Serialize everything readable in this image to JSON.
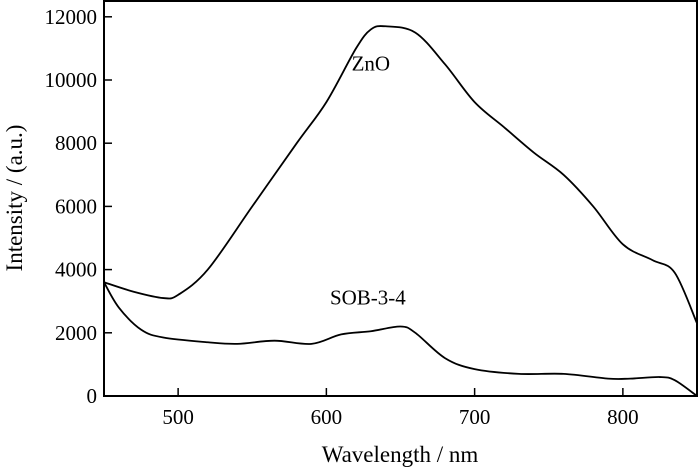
{
  "chart_data": {
    "type": "line",
    "title": "",
    "xlabel": "Wavelength /  nm",
    "ylabel": "Intensity / (a.u.)",
    "xlim": [
      450,
      850
    ],
    "ylim": [
      0,
      12500
    ],
    "xticks": [
      500,
      600,
      700,
      800
    ],
    "yticks": [
      0,
      2000,
      4000,
      6000,
      8000,
      10000,
      12000
    ],
    "grid": false,
    "series": [
      {
        "name": "ZnO",
        "label_at": [
          630,
          10300
        ],
        "x": [
          450,
          470,
          490,
          500,
          520,
          550,
          580,
          600,
          620,
          630,
          640,
          660,
          680,
          700,
          720,
          740,
          760,
          780,
          800,
          820,
          835,
          850
        ],
        "y": [
          3600,
          3300,
          3100,
          3200,
          4000,
          6000,
          8000,
          9300,
          11000,
          11600,
          11700,
          11500,
          10500,
          9300,
          8500,
          7700,
          7000,
          6000,
          4800,
          4300,
          3900,
          2300
        ]
      },
      {
        "name": "SOB-3-4",
        "label_at": [
          628,
          2900
        ],
        "x": [
          450,
          460,
          475,
          490,
          520,
          540,
          565,
          590,
          610,
          630,
          650,
          660,
          680,
          700,
          730,
          760,
          790,
          805,
          825,
          835,
          850
        ],
        "y": [
          3600,
          2800,
          2100,
          1850,
          1700,
          1650,
          1750,
          1650,
          1950,
          2050,
          2200,
          2000,
          1200,
          850,
          700,
          700,
          550,
          550,
          600,
          500,
          0
        ]
      }
    ]
  }
}
